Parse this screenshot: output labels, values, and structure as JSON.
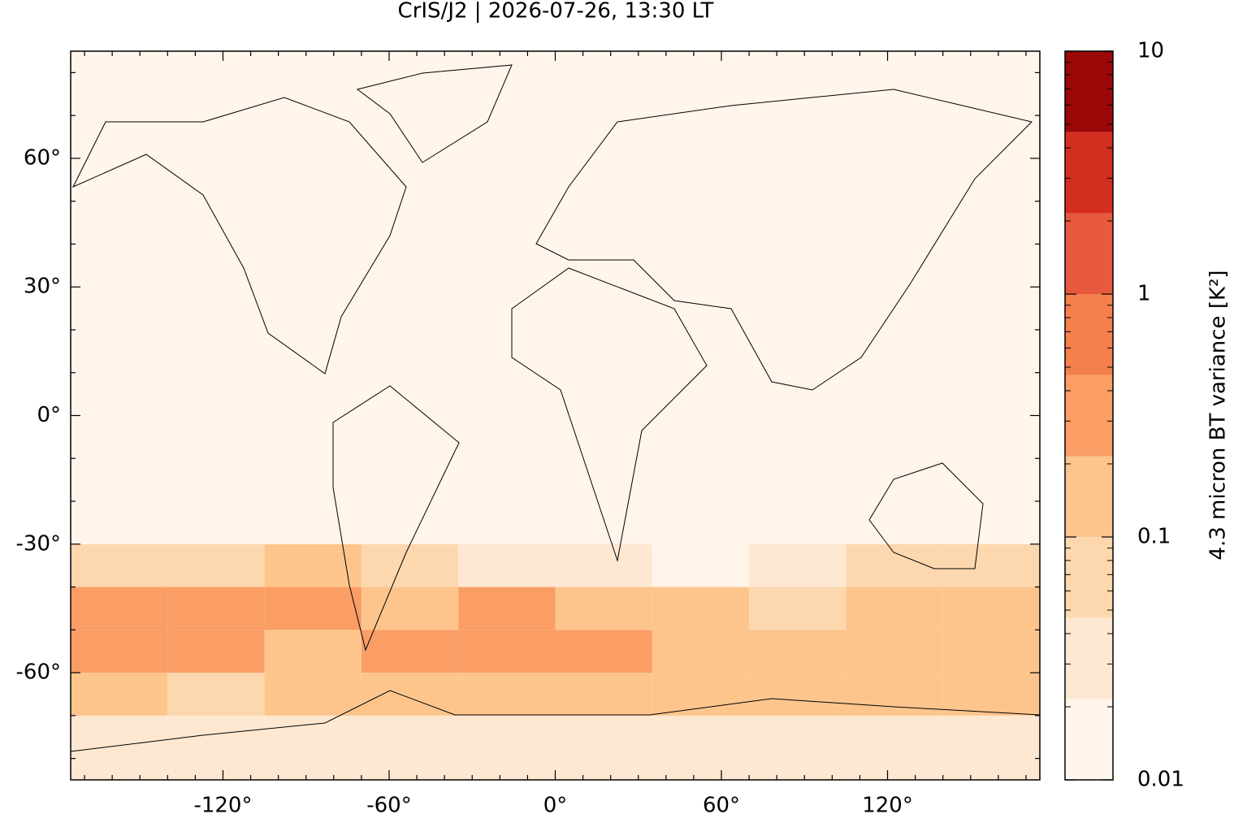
{
  "chart_data": {
    "type": "map",
    "title": "CrIS/J2 | 2026-07-26, 13:30 LT",
    "xlim": [
      -175,
      175
    ],
    "ylim": [
      -85,
      85
    ],
    "xticks": [
      {
        "value": -120,
        "label": "-120°"
      },
      {
        "value": -60,
        "label": "-60°"
      },
      {
        "value": 0,
        "label": "0°"
      },
      {
        "value": 60,
        "label": "60°"
      },
      {
        "value": 120,
        "label": "120°"
      }
    ],
    "yticks": [
      {
        "value": -60,
        "label": "-60°"
      },
      {
        "value": -30,
        "label": "-30°"
      },
      {
        "value": 0,
        "label": "0°"
      },
      {
        "value": 30,
        "label": "30°"
      },
      {
        "value": 60,
        "label": "60°"
      }
    ],
    "xminor": [
      -170,
      -160,
      -150,
      -140,
      -130,
      -110,
      -100,
      -90,
      -80,
      -70,
      -50,
      -40,
      -30,
      -20,
      -10,
      10,
      20,
      30,
      40,
      50,
      70,
      80,
      90,
      100,
      110,
      130,
      140,
      150,
      160,
      170
    ],
    "yminor": [
      -80,
      -70,
      -50,
      -40,
      -20,
      -10,
      10,
      20,
      40,
      50,
      70,
      80
    ],
    "field": {
      "lon_edges": [
        -175,
        -140,
        -105,
        -70,
        -35,
        0,
        35,
        70,
        105,
        140,
        175
      ],
      "lat_edges": [
        -85,
        -70,
        -60,
        -50,
        -40,
        -30,
        85
      ],
      "values": [
        [
          0.03,
          0.03,
          0.03,
          0.03,
          0.03,
          0.03,
          0.03,
          0.03,
          0.03,
          0.03
        ],
        [
          0.1,
          0.08,
          0.1,
          0.2,
          0.15,
          0.12,
          0.1,
          0.15,
          0.2,
          0.1
        ],
        [
          0.3,
          0.4,
          0.2,
          0.3,
          0.3,
          0.4,
          0.2,
          0.15,
          0.2,
          0.2
        ],
        [
          0.3,
          0.25,
          0.4,
          0.2,
          0.35,
          0.2,
          0.1,
          0.08,
          0.15,
          0.2
        ],
        [
          0.08,
          0.05,
          0.1,
          0.05,
          0.03,
          0.04,
          0.02,
          0.03,
          0.06,
          0.05
        ],
        [
          0.015,
          0.015,
          0.015,
          0.015,
          0.015,
          0.015,
          0.015,
          0.015,
          0.015,
          0.015
        ]
      ]
    },
    "colorbar": {
      "label": "4.3 micron BT variance [K²]",
      "log": true,
      "lim": [
        0.01,
        10
      ],
      "levels": [
        0.01,
        0.0215,
        0.0464,
        0.1,
        0.215,
        0.464,
        1,
        2.15,
        4.64,
        10
      ],
      "colors": [
        "#fff5eb",
        "#fee8d2",
        "#fdd7ae",
        "#fdc58c",
        "#fa9e66",
        "#f4804e",
        "#e85a3e",
        "#d42e20",
        "#9b0808"
      ],
      "ticks": [
        0.01,
        0.1,
        1,
        10
      ],
      "minor": [
        0.02,
        0.03,
        0.04,
        0.05,
        0.06,
        0.07,
        0.08,
        0.09,
        0.2,
        0.3,
        0.4,
        0.5,
        0.6,
        0.7,
        0.8,
        0.9,
        2,
        3,
        4,
        5,
        6,
        7,
        8,
        9
      ]
    }
  }
}
